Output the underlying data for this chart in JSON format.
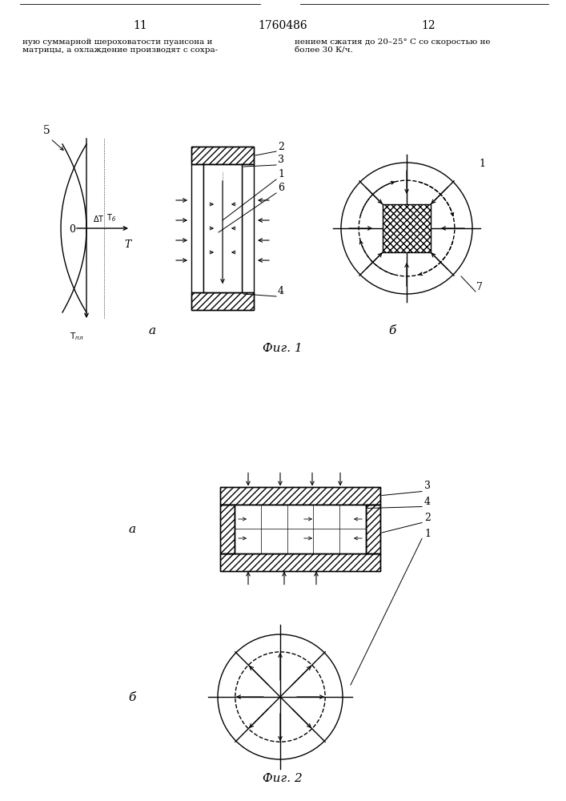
{
  "page_width": 7.07,
  "page_height": 10.0,
  "bg_color": "#ffffff",
  "line_color": "#000000",
  "header_left_num": "11",
  "header_center_num": "1760486",
  "header_right_num": "12",
  "header_text_left": "ную суммарной шероховатости пуансона и\nматрицы, а охлаждение производят с сохра-",
  "header_text_right": "нением сжатия до 20–25° С со скоростью не\nболее 30 К/ч.",
  "fig1_caption": "Фиг. 1",
  "fig2_caption": "Фиг. 2"
}
